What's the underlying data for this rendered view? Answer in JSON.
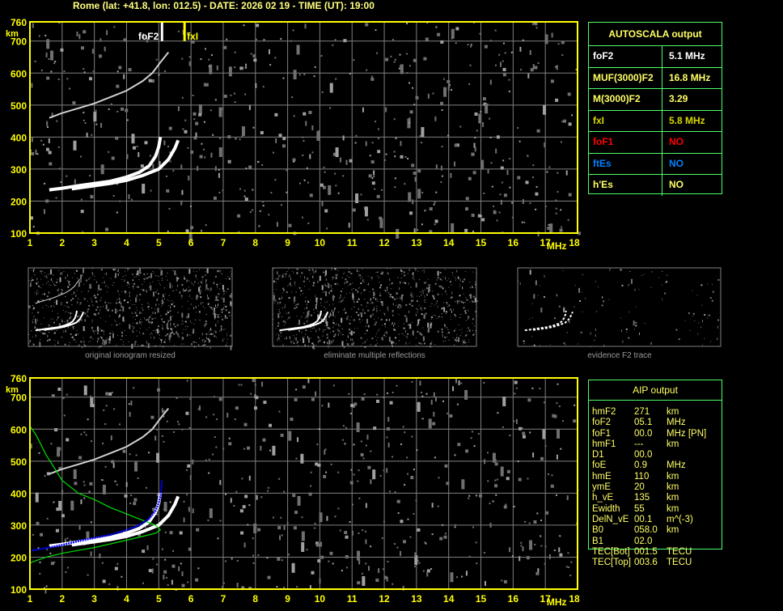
{
  "header": {
    "title": "Rome (lat: +41.8, lon: 012.5) - DATE: 2026 02 19 - TIME (UT): 19:00"
  },
  "colors": {
    "axis": "#ffff00",
    "grid": "#808080",
    "panel_border": "#4cff6c",
    "trace": "#ffffff",
    "fitted": "#0000ff",
    "profile": "#00e000"
  },
  "autoscala": {
    "title": "AUTOSCALA output",
    "rows": [
      {
        "label": "foF2",
        "value": "5.1 MHz",
        "color": "#ffffff"
      },
      {
        "label": "MUF(3000)F2",
        "value": "16.8 MHz",
        "color": "#ffff66"
      },
      {
        "label": "M(3000)F2",
        "value": "3.29",
        "color": "#ffff66"
      },
      {
        "label": "fxI",
        "value": "5.8 MHz",
        "color": "#d8d800"
      },
      {
        "label": "foF1",
        "value": "NO",
        "color": "#ff0000"
      },
      {
        "label": "ftEs",
        "value": "NO",
        "color": "#0080ff"
      },
      {
        "label": "h'Es",
        "value": "NO",
        "color": "#ffff66"
      }
    ]
  },
  "aip": {
    "title": "AIP output",
    "rows": [
      [
        "hmF2",
        "271",
        "km"
      ],
      [
        "foF2",
        "05.1",
        "MHz"
      ],
      [
        "foF1",
        "00.0",
        "MHz   [PN]"
      ],
      [
        "hmF1",
        "---",
        "km"
      ],
      [
        "D1",
        "00.0",
        ""
      ],
      [
        "foE",
        "0.9",
        "MHz"
      ],
      [
        "hmE",
        "110",
        "km"
      ],
      [
        "ymE",
        "20",
        "km"
      ],
      [
        "h_vE",
        "135",
        "km"
      ],
      [
        "Ewidth",
        "55",
        "km"
      ],
      [
        "DelN_vE",
        "00.1",
        "m^(-3)"
      ],
      [
        "B0",
        "058.0",
        "km"
      ],
      [
        "B1",
        "02.0",
        ""
      ],
      [
        "TEC[Bot]",
        "001.5",
        "TECU"
      ],
      [
        "TEC[Top]",
        "003.6",
        "TECU"
      ]
    ]
  },
  "thumbnails": [
    "original ionogram resized",
    "eliminate multiple reflections",
    "evidence F2 trace"
  ],
  "chart_data": {
    "type": "scatter",
    "xlabel": "MHz",
    "ylabel": "km",
    "xlim": [
      1,
      18
    ],
    "ylim": [
      100,
      760
    ],
    "xticks": [
      "1",
      "2",
      "3",
      "4",
      "5",
      "6",
      "7",
      "8",
      "9",
      "10",
      "11",
      "12",
      "13",
      "14",
      "15",
      "16",
      "17",
      "18"
    ],
    "yticks": [
      "100",
      "200",
      "300",
      "400",
      "500",
      "600",
      "700",
      "760"
    ],
    "grid": true,
    "markers": [
      {
        "label": "foF2",
        "freq": 5.1,
        "color": "#ffffff"
      },
      {
        "label": "fxI",
        "freq": 5.8,
        "color": "#ffff00"
      }
    ],
    "traces": {
      "o_trace": [
        [
          1.6,
          235
        ],
        [
          2,
          240
        ],
        [
          2.5,
          248
        ],
        [
          3,
          255
        ],
        [
          3.5,
          262
        ],
        [
          4,
          275
        ],
        [
          4.4,
          290
        ],
        [
          4.7,
          310
        ],
        [
          4.9,
          340
        ],
        [
          5.0,
          370
        ],
        [
          5.05,
          400
        ]
      ],
      "x_trace": [
        [
          2.3,
          238
        ],
        [
          3,
          248
        ],
        [
          3.5,
          255
        ],
        [
          4,
          265
        ],
        [
          4.5,
          280
        ],
        [
          5,
          300
        ],
        [
          5.3,
          330
        ],
        [
          5.5,
          365
        ],
        [
          5.6,
          390
        ]
      ],
      "second_hop": [
        [
          1.6,
          460
        ],
        [
          2,
          475
        ],
        [
          2.5,
          490
        ],
        [
          3,
          505
        ],
        [
          3.5,
          525
        ],
        [
          4,
          545
        ],
        [
          4.5,
          575
        ],
        [
          4.8,
          600
        ],
        [
          5.1,
          640
        ],
        [
          5.3,
          665
        ]
      ]
    },
    "aip_fitted_trace": [
      [
        1.0,
        220
      ],
      [
        1.5,
        228
      ],
      [
        2,
        238
      ],
      [
        2.5,
        250
      ],
      [
        3,
        260
      ],
      [
        3.5,
        270
      ],
      [
        4,
        285
      ],
      [
        4.4,
        300
      ],
      [
        4.7,
        320
      ],
      [
        4.9,
        345
      ],
      [
        5.0,
        370
      ],
      [
        5.05,
        390
      ],
      [
        5.1,
        440
      ]
    ],
    "aip_profile": [
      [
        1.0,
        610
      ],
      [
        1.2,
        580
      ],
      [
        1.5,
        520
      ],
      [
        2,
        440
      ],
      [
        2.5,
        400
      ],
      [
        3,
        380
      ],
      [
        3.5,
        355
      ],
      [
        4,
        335
      ],
      [
        4.5,
        315
      ],
      [
        4.9,
        300
      ],
      [
        5.05,
        285
      ],
      [
        4.9,
        275
      ],
      [
        4.5,
        265
      ],
      [
        4,
        253
      ],
      [
        3,
        230
      ],
      [
        2,
        212
      ],
      [
        1.5,
        200
      ],
      [
        1.0,
        182
      ]
    ]
  }
}
